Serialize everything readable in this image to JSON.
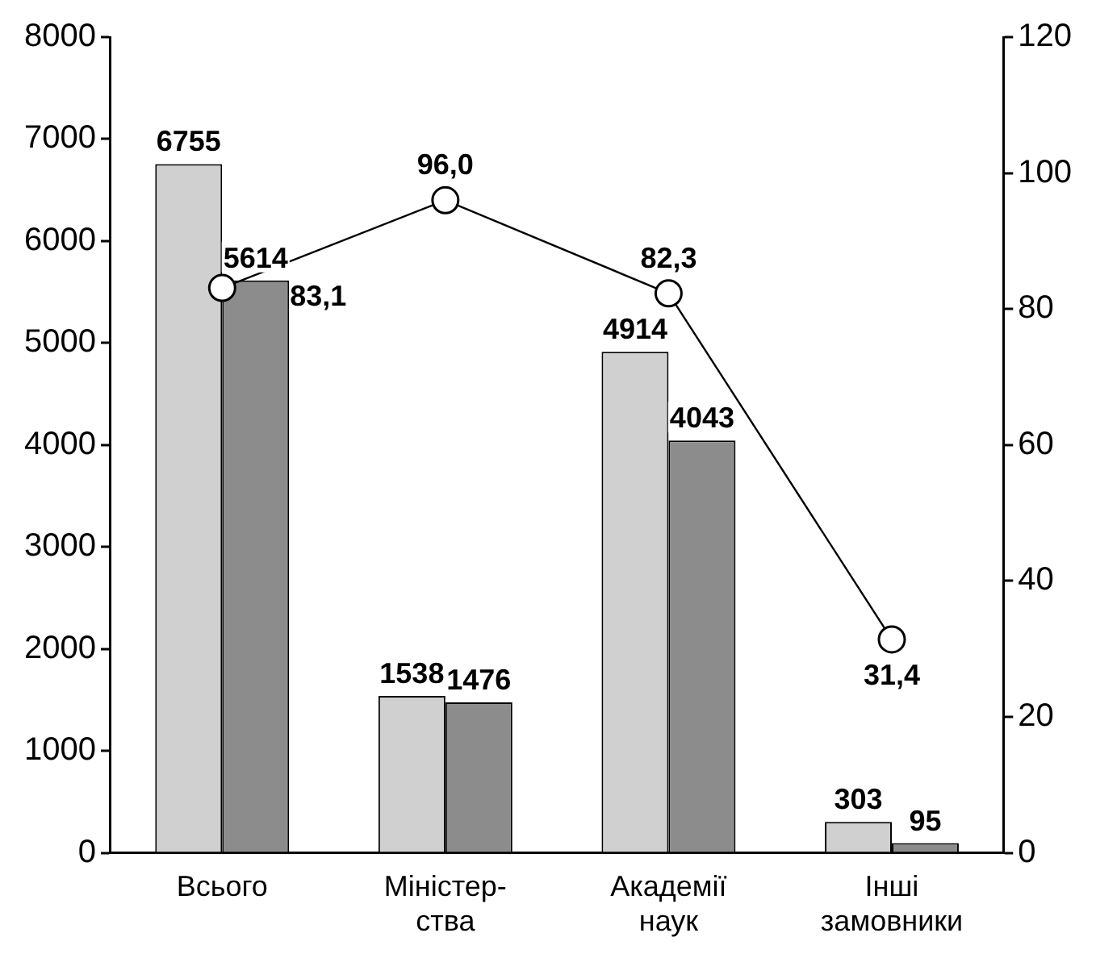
{
  "chart_data": {
    "type": "bar",
    "categories": [
      "Всього",
      "Міністер-\nства",
      "Академії\nнаук",
      "Інші\nзамовники"
    ],
    "series": [
      {
        "color": "#d0d0d0",
        "values": [
          6755,
          1538,
          4914,
          303
        ],
        "value_labels": [
          "6755",
          "1538",
          "4914",
          "303"
        ]
      },
      {
        "color": "#8c8c8c",
        "values": [
          5614,
          1476,
          4043,
          95
        ],
        "value_labels": [
          "5614",
          "1476",
          "4043",
          "95"
        ]
      },
      {
        "type": "line",
        "axis": "y2",
        "color": "#000000",
        "values": [
          83.1,
          96.0,
          82.3,
          31.4
        ],
        "value_labels": [
          "83,1",
          "96,0",
          "82,3",
          "31,4"
        ]
      }
    ],
    "ylim": [
      0,
      8000
    ],
    "yticks": [
      0,
      1000,
      2000,
      3000,
      4000,
      5000,
      6000,
      7000,
      8000
    ],
    "y2lim": [
      0,
      120
    ],
    "y2ticks": [
      0,
      20,
      40,
      60,
      80,
      100,
      120
    ],
    "grid": false,
    "legend": false,
    "marker": "circle",
    "line_style": "solid"
  }
}
